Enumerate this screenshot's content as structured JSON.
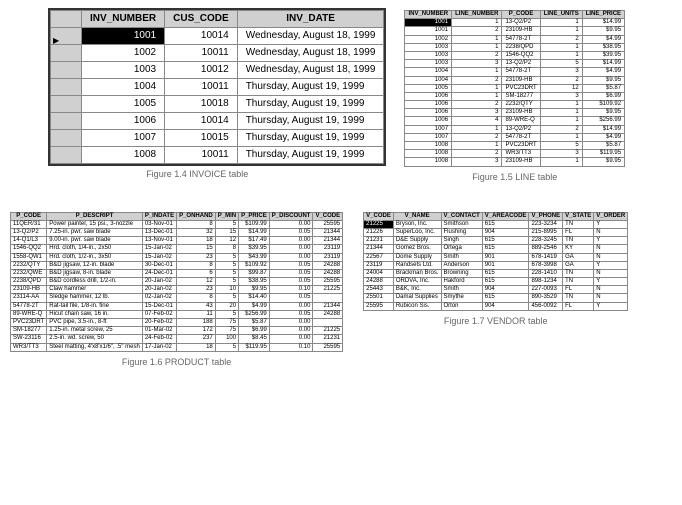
{
  "invoice": {
    "caption": "Figure 1.4 INVOICE table",
    "columns": [
      "INV_NUMBER",
      "CUS_CODE",
      "INV_DATE"
    ],
    "rows": [
      [
        "1001",
        "10014",
        "Wednesday, August 18, 1999"
      ],
      [
        "1002",
        "10011",
        "Wednesday, August 18, 1999"
      ],
      [
        "1003",
        "10012",
        "Wednesday, August 18, 1999"
      ],
      [
        "1004",
        "10011",
        "Thursday, August 19, 1999"
      ],
      [
        "1005",
        "10018",
        "Thursday, August 19, 1999"
      ],
      [
        "1006",
        "10014",
        "Thursday, August 19, 1999"
      ],
      [
        "1007",
        "10015",
        "Thursday, August 19, 1999"
      ],
      [
        "1008",
        "10011",
        "Thursday, August 19, 1999"
      ]
    ]
  },
  "line": {
    "caption": "Figure 1.5 LINE table",
    "columns": [
      "INV_NUMBER",
      "LINE_NUMBER",
      "P_CODE",
      "LINE_UNITS",
      "LINE_PRICE"
    ],
    "rows": [
      [
        "1001",
        "1",
        "13-Q2/P2",
        "1",
        "$14.99"
      ],
      [
        "1001",
        "2",
        "23109-HB",
        "1",
        "$9.95"
      ],
      [
        "1002",
        "1",
        "54778-2T",
        "2",
        "$4.99"
      ],
      [
        "1003",
        "1",
        "2238/QPD",
        "1",
        "$38.95"
      ],
      [
        "1003",
        "2",
        "1546-QQ2",
        "1",
        "$39.95"
      ],
      [
        "1003",
        "3",
        "13-Q2/P2",
        "5",
        "$14.99"
      ],
      [
        "1004",
        "1",
        "54778-2T",
        "3",
        "$4.99"
      ],
      [
        "1004",
        "2",
        "23109-HB",
        "2",
        "$9.95"
      ],
      [
        "1005",
        "1",
        "PVC23DRT",
        "12",
        "$5.87"
      ],
      [
        "1006",
        "1",
        "SM-18277",
        "3",
        "$6.99"
      ],
      [
        "1006",
        "2",
        "2232/QTY",
        "1",
        "$109.92"
      ],
      [
        "1006",
        "3",
        "23109-HB",
        "1",
        "$9.95"
      ],
      [
        "1006",
        "4",
        "89-WRE-Q",
        "1",
        "$256.99"
      ],
      [
        "1007",
        "1",
        "13-Q2/P2",
        "2",
        "$14.99"
      ],
      [
        "1007",
        "2",
        "54778-2T",
        "1",
        "$4.99"
      ],
      [
        "1008",
        "1",
        "PVC23DRT",
        "5",
        "$5.87"
      ],
      [
        "1008",
        "2",
        "WR3/TT3",
        "3",
        "$119.95"
      ],
      [
        "1008",
        "3",
        "23109-HB",
        "1",
        "$9.95"
      ]
    ]
  },
  "product": {
    "caption": "Figure 1.6 PRODUCT table",
    "columns": [
      "P_CODE",
      "P_DESCRIPT",
      "P_INDATE",
      "P_ONHAND",
      "P_MIN",
      "P_PRICE",
      "P_DISCOUNT",
      "V_CODE"
    ],
    "rows": [
      [
        "11QER/31",
        "Power painter, 15 psi., 3-nozzle",
        "03-Nov-01",
        "8",
        "5",
        "$109.99",
        "0.00",
        "25595"
      ],
      [
        "13-Q2/P2",
        "7.25-in. pwr. saw blade",
        "13-Dec-01",
        "32",
        "15",
        "$14.99",
        "0.05",
        "21344"
      ],
      [
        "14-Q1/L3",
        "9.00-in. pwr. saw blade",
        "13-Nov-01",
        "18",
        "12",
        "$17.49",
        "0.00",
        "21344"
      ],
      [
        "1546-QQ2",
        "Hrd. cloth, 1/4-in., 2x50",
        "15-Jan-02",
        "15",
        "8",
        "$39.95",
        "0.00",
        "23119"
      ],
      [
        "1558-QW1",
        "Hrd. cloth, 1/2-in., 3x50",
        "15-Jan-02",
        "23",
        "5",
        "$43.99",
        "0.00",
        "23119"
      ],
      [
        "2232/QTY",
        "B&D jigsaw, 12-in. blade",
        "30-Dec-01",
        "8",
        "5",
        "$109.92",
        "0.05",
        "24288"
      ],
      [
        "2232/QWE",
        "B&D jigsaw, 8-in. blade",
        "24-Dec-01",
        "6",
        "5",
        "$99.87",
        "0.05",
        "24288"
      ],
      [
        "2238/QPD",
        "B&D cordless drill, 1/2-in.",
        "20-Jan-02",
        "12",
        "5",
        "$38.95",
        "0.05",
        "25595"
      ],
      [
        "23109-HB",
        "Claw hammer",
        "20-Jan-02",
        "23",
        "10",
        "$9.95",
        "0.10",
        "21225"
      ],
      [
        "23114-AA",
        "Sledge hammer, 12 lb.",
        "02-Jan-02",
        "8",
        "5",
        "$14.40",
        "0.05",
        ""
      ],
      [
        "54778-2T",
        "Rat-tail file, 1/8-in. fine",
        "15-Dec-01",
        "43",
        "20",
        "$4.99",
        "0.00",
        "21344"
      ],
      [
        "89-WRE-Q",
        "Hicut chain saw, 16 in.",
        "07-Feb-02",
        "11",
        "5",
        "$256.99",
        "0.05",
        "24288"
      ],
      [
        "PVC23DRT",
        "PVC pipe, 3.5-in., 8-ft",
        "20-Feb-02",
        "188",
        "75",
        "$5.87",
        "0.00",
        ""
      ],
      [
        "SM-18277",
        "1.25-in. metal screw, 25",
        "01-Mar-02",
        "172",
        "75",
        "$6.99",
        "0.00",
        "21225"
      ],
      [
        "SW-23116",
        "2.5-in. wd. screw, 50",
        "24-Feb-02",
        "237",
        "100",
        "$8.45",
        "0.00",
        "21231"
      ],
      [
        "WR3/TT3",
        "Steel matting, 4'x8'x1/6\", .5\" mesh",
        "17-Jan-02",
        "18",
        "5",
        "$119.95",
        "0.10",
        "25595"
      ]
    ]
  },
  "vendor": {
    "caption": "Figure 1.7 VENDOR table",
    "columns": [
      "V_CODE",
      "V_NAME",
      "V_CONTACT",
      "V_AREACODE",
      "V_PHONE",
      "V_STATE",
      "V_ORDER"
    ],
    "rows": [
      [
        "21225",
        "Bryson, Inc.",
        "Smithson",
        "615",
        "223-3234",
        "TN",
        "Y"
      ],
      [
        "21226",
        "SuperLoo, Inc.",
        "Flushing",
        "904",
        "215-8995",
        "FL",
        "N"
      ],
      [
        "21231",
        "D&E Supply",
        "Singh",
        "615",
        "228-3245",
        "TN",
        "Y"
      ],
      [
        "21344",
        "Gomez Bros.",
        "Ortega",
        "615",
        "889-2546",
        "KY",
        "N"
      ],
      [
        "22567",
        "Dome Supply",
        "Smith",
        "901",
        "678-1419",
        "GA",
        "N"
      ],
      [
        "23119",
        "Randsets Ltd.",
        "Anderson",
        "901",
        "678-3998",
        "GA",
        "Y"
      ],
      [
        "24004",
        "Brackman Bros.",
        "Browning",
        "615",
        "228-1410",
        "TN",
        "N"
      ],
      [
        "24288",
        "ORDVA, Inc.",
        "Hakford",
        "615",
        "898-1234",
        "TN",
        "Y"
      ],
      [
        "25443",
        "B&K, Inc.",
        "Smith",
        "904",
        "227-0093",
        "FL",
        "N"
      ],
      [
        "25501",
        "Damal Supplies",
        "Smythe",
        "615",
        "890-3529",
        "TN",
        "N"
      ],
      [
        "25595",
        "Rubicon Sis.",
        "Orton",
        "904",
        "456-0092",
        "FL",
        "Y"
      ]
    ]
  }
}
